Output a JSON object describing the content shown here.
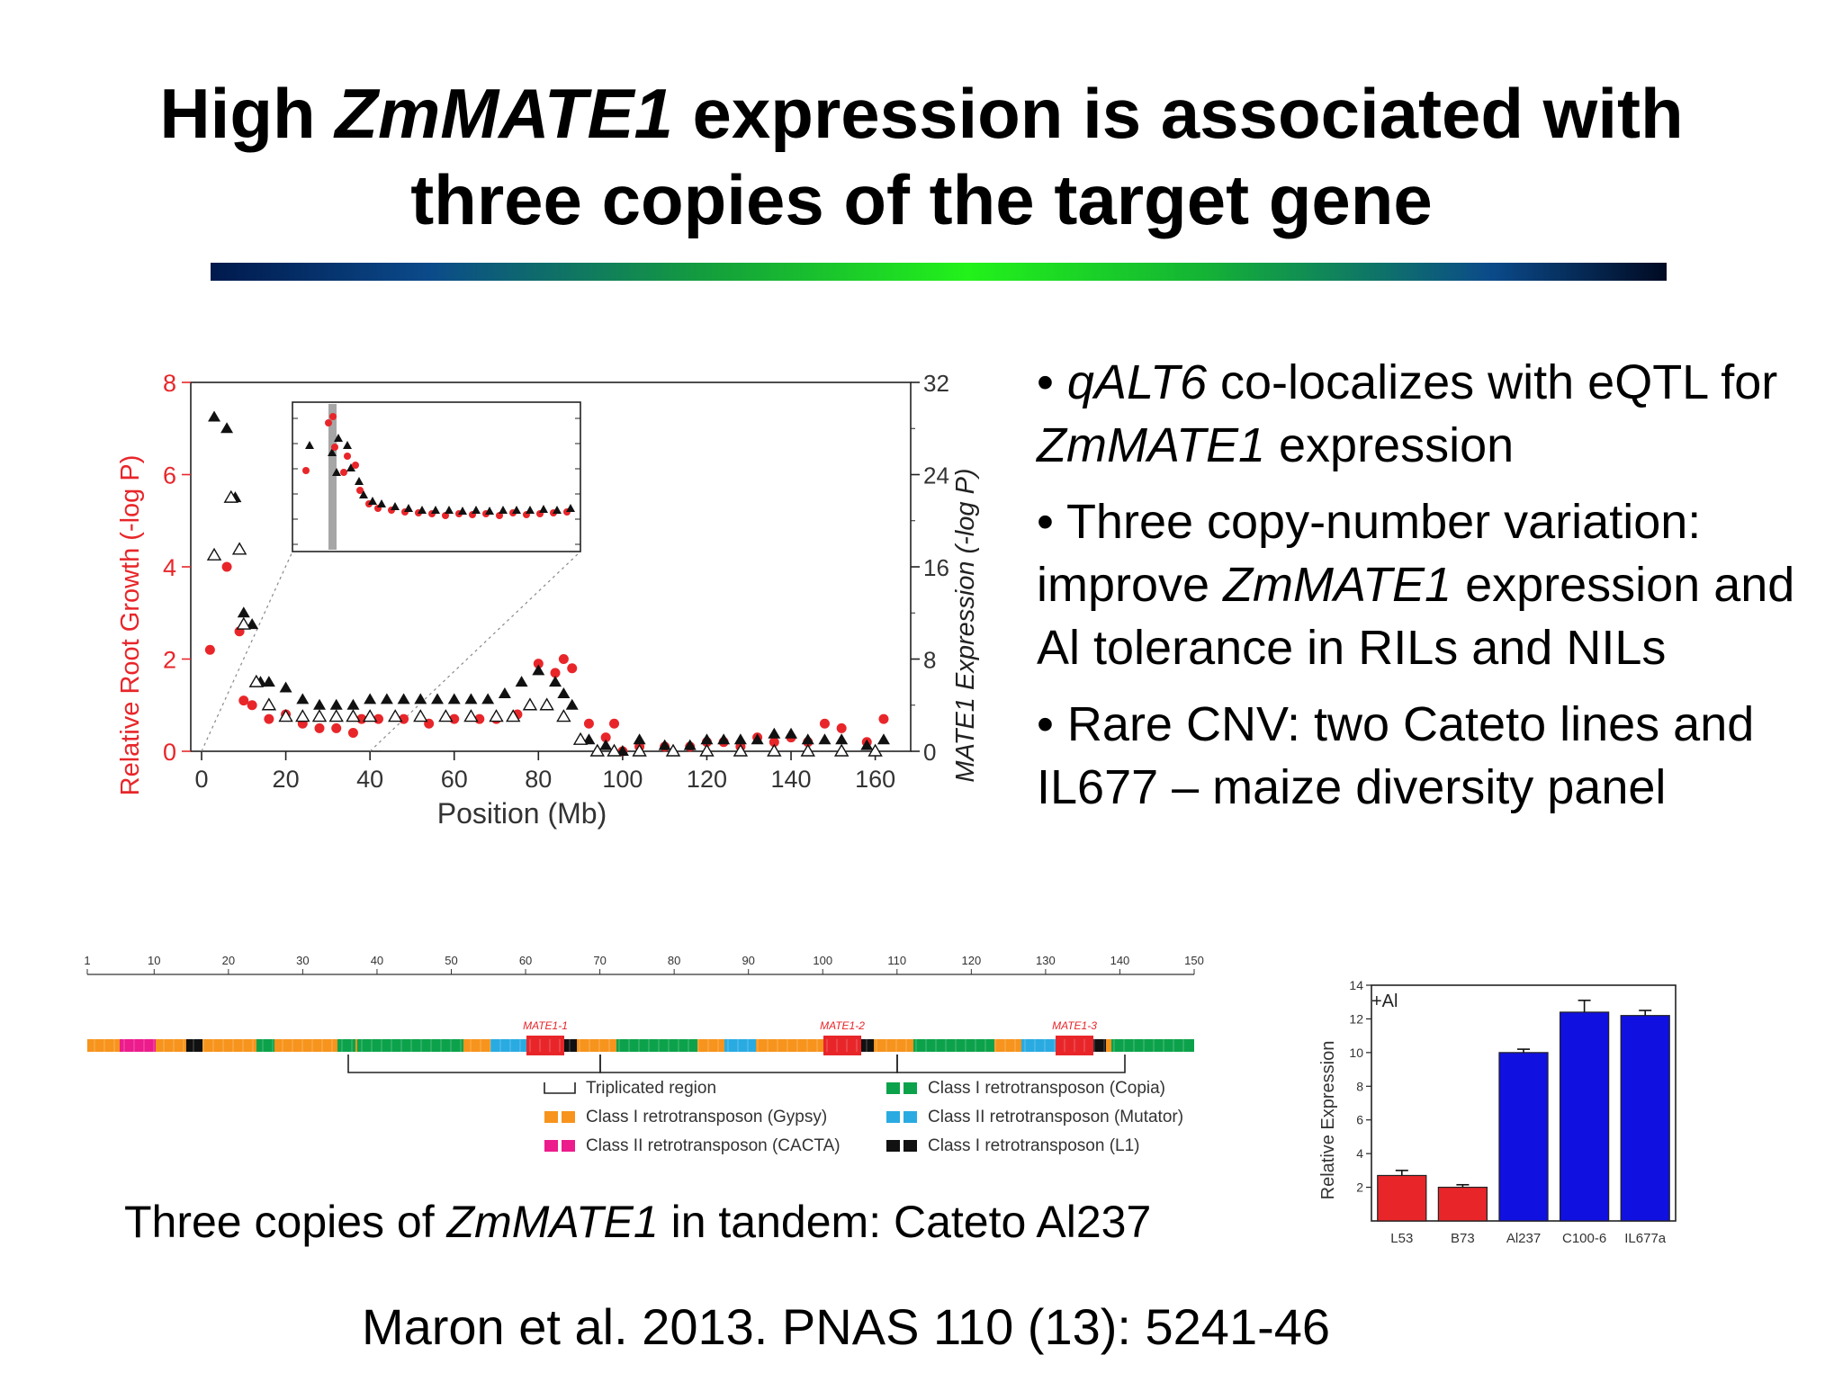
{
  "slide": {
    "title": {
      "pre": "High ",
      "italic": "ZmMATE1",
      "post_line1": " expression is associated with",
      "line2": "three copies of the target gene"
    },
    "bullets": [
      {
        "italic": "qALT6",
        "text": " co-localizes with eQTL for ",
        "italic2": "ZmMATE1",
        "text2": " expression"
      },
      {
        "italic": "",
        "text": "Three copy-number variation: improve ",
        "italic2": "ZmMATE1",
        "text2": " expression and Al tolerance in RILs and NILs"
      },
      {
        "italic": "",
        "text": "Rare CNV: two Cateto lines and IL677 – maize diversity panel",
        "italic2": "",
        "text2": ""
      }
    ],
    "caption": {
      "pre": "Three copies of ",
      "italic": "ZmMATE1",
      "post": " in tandem: Cateto Al237"
    },
    "reference": "Maron et al. 2013. PNAS 110 (13): 5241-46",
    "colors": {
      "red": "#e8262a",
      "blue": "#1010e0",
      "gypsy": "#f7941d",
      "copia": "#0ca24b",
      "mutator": "#29abe2",
      "cacta": "#ec1c8c",
      "l1": "#111111",
      "axis_red": "#e8262a"
    }
  },
  "chart_data": [
    {
      "type": "scatter",
      "name": "qtl_scan",
      "xlabel": "Position (Mb)",
      "ylabel": "Relative Root Growth (-log P)",
      "y2label": "MATE1 Expression (-log P)",
      "xlim": [
        0,
        165
      ],
      "ylim": [
        0,
        8
      ],
      "y2lim": [
        0,
        32
      ],
      "xticks": [
        "0",
        "20",
        "40",
        "60",
        "80",
        "100",
        "120",
        "140",
        "160"
      ],
      "yticks": [
        "0",
        "2",
        "4",
        "6",
        "8"
      ],
      "y2ticks": [
        "0",
        "8",
        "16",
        "24",
        "32"
      ],
      "series": [
        {
          "marker": "circle",
          "color": "#e8262a",
          "x": [
            2,
            6,
            9,
            10,
            12,
            16,
            20,
            24,
            28,
            32,
            36,
            38,
            42,
            48,
            54,
            60,
            66,
            70,
            75,
            80,
            84,
            86,
            88,
            92,
            96,
            98,
            100,
            104,
            110,
            116,
            120,
            124,
            128,
            132,
            136,
            140,
            144,
            148,
            152,
            158,
            162
          ],
          "y": [
            2.2,
            4.0,
            2.6,
            1.1,
            1.0,
            0.7,
            0.8,
            0.6,
            0.5,
            0.5,
            0.4,
            0.7,
            0.7,
            0.7,
            0.6,
            0.7,
            0.7,
            0.7,
            0.8,
            1.9,
            1.7,
            2.0,
            1.8,
            0.6,
            0.3,
            0.6,
            0.0,
            0.1,
            0.1,
            0.1,
            0.2,
            0.2,
            0.1,
            0.3,
            0.2,
            0.3,
            0.2,
            0.6,
            0.5,
            0.2,
            0.7
          ]
        },
        {
          "marker": "triangle-filled",
          "color": "#111111",
          "x": [
            3,
            6,
            8,
            10,
            12,
            14,
            16,
            20,
            24,
            28,
            32,
            36,
            40,
            44,
            48,
            52,
            56,
            60,
            64,
            68,
            72,
            76,
            80,
            84,
            86,
            88,
            92,
            96,
            100,
            104,
            110,
            116,
            120,
            124,
            128,
            132,
            136,
            140,
            144,
            148,
            152,
            158,
            162
          ],
          "y": [
            29,
            28,
            22,
            12,
            11,
            6,
            6,
            5.5,
            4.5,
            4,
            4,
            4,
            4.5,
            4.5,
            4.5,
            4.5,
            4.5,
            4.5,
            4.5,
            4.5,
            5,
            6,
            7,
            6,
            5,
            4,
            1,
            0.5,
            0,
            1,
            0.5,
            0.5,
            1,
            1,
            1,
            1,
            1.5,
            1.5,
            1,
            1,
            1,
            0.5,
            1
          ]
        },
        {
          "marker": "triangle-open",
          "color": "#111111",
          "x": [
            3,
            7,
            9,
            10,
            13,
            16,
            20,
            24,
            28,
            32,
            36,
            40,
            46,
            52,
            58,
            64,
            70,
            74,
            78,
            82,
            86,
            90,
            94,
            98,
            104,
            112,
            120,
            128,
            136,
            144,
            152,
            160
          ],
          "y": [
            17,
            22,
            17.5,
            11,
            6,
            4,
            3,
            3,
            3,
            3,
            3,
            3,
            3,
            3,
            3,
            3,
            3,
            3,
            4,
            4,
            3,
            1,
            0,
            0,
            0,
            0,
            0,
            0,
            0,
            0,
            0,
            0
          ]
        }
      ],
      "inset": {
        "shaded_band": true
      }
    },
    {
      "type": "bar",
      "name": "relative_expression",
      "title": "+Al",
      "ylabel": "Relative Expression",
      "categories": [
        "L53",
        "B73",
        "Al237",
        "C100-6",
        "IL677a"
      ],
      "values": [
        2.7,
        2.0,
        10.0,
        12.4,
        12.2
      ],
      "errors": [
        0.3,
        0.15,
        0.2,
        0.7,
        0.3
      ],
      "colors": [
        "#e8262a",
        "#e8262a",
        "#1010e0",
        "#1010e0",
        "#1010e0"
      ],
      "ylim": [
        0,
        14
      ],
      "yticks": [
        "2",
        "4",
        "6",
        "8",
        "10",
        "12",
        "14"
      ]
    }
  ],
  "gene_map": {
    "scale_labels": [
      "1",
      "10",
      "20",
      "30",
      "40",
      "50",
      "60",
      "70",
      "80",
      "90",
      "100",
      "110",
      "120",
      "130",
      "140",
      "150"
    ],
    "gene_labels": [
      "MATE1-1",
      "MATE1-2",
      "MATE1-3"
    ],
    "legend": [
      {
        "key": "bracket",
        "label": "Triplicated region"
      },
      {
        "key": "copia",
        "label": "Class I retrotransposon (Copia)"
      },
      {
        "key": "gypsy",
        "label": "Class I retrotransposon (Gypsy)"
      },
      {
        "key": "mutator",
        "label": "Class II retrotransposon (Mutator)"
      },
      {
        "key": "cacta",
        "label": "Class II retrotransposon (CACTA)"
      },
      {
        "key": "l1",
        "label": "Class I retrotransposon (L1)"
      }
    ]
  }
}
